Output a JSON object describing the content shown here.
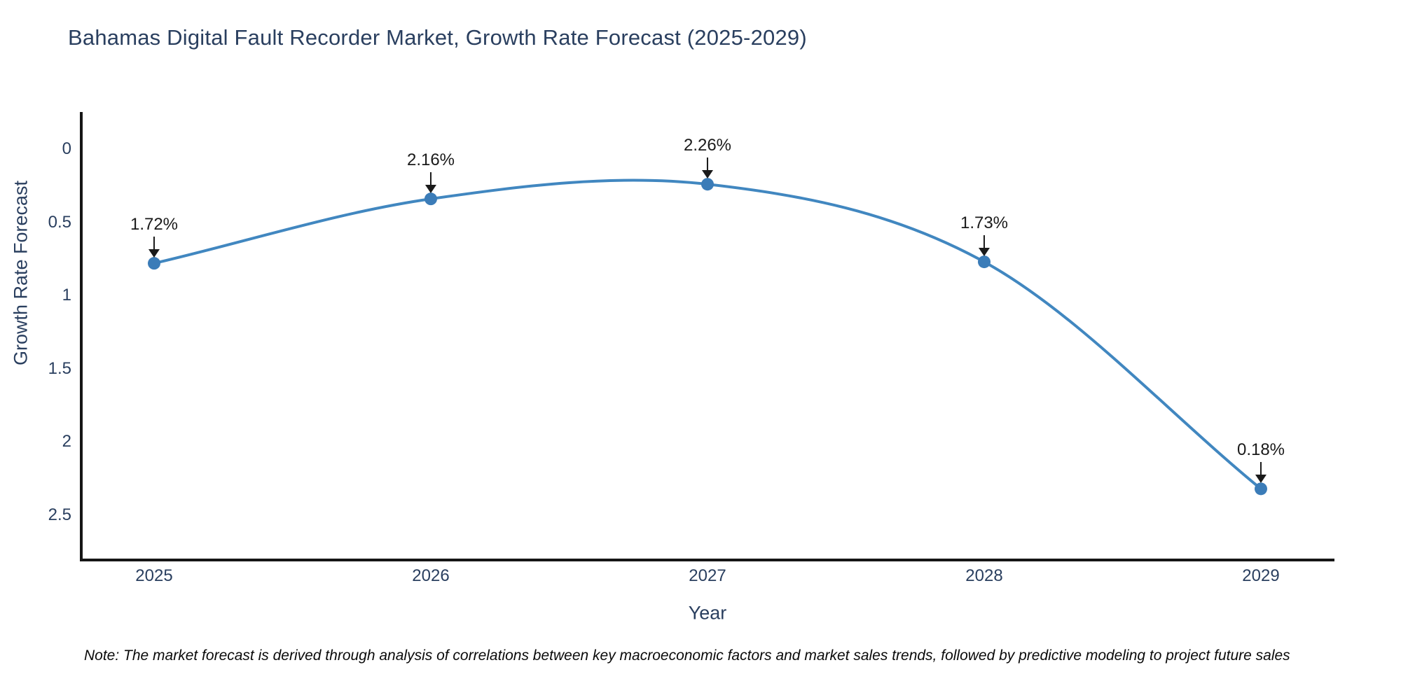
{
  "chart_data": {
    "type": "line",
    "title": "Bahamas Digital Fault Recorder Market, Growth Rate Forecast (2025-2029)",
    "xlabel": "Year",
    "ylabel": "Growth Rate Forecast",
    "x": [
      2025,
      2026,
      2027,
      2028,
      2029
    ],
    "x_labels": [
      "2025",
      "2026",
      "2027",
      "2028",
      "2029"
    ],
    "values": [
      1.72,
      2.16,
      2.26,
      1.73,
      0.18
    ],
    "point_labels": [
      "1.72%",
      "2.16%",
      "2.26%",
      "1.73%",
      "0.18%"
    ],
    "ytick_values": [
      0,
      0.5,
      1,
      1.5,
      2,
      2.5
    ],
    "ytick_labels": [
      "0",
      "0.5",
      "1",
      "1.5",
      "2",
      "2.5"
    ],
    "ylim": [
      -0.32,
      2.75
    ],
    "xlim": [
      2024.73,
      2029.27
    ],
    "grid": false,
    "legend": "none",
    "line_shape": "spline",
    "annotation_style": "down-arrow",
    "note": "Note: The market forecast is derived through analysis of correlations between key macroeconomic factors and market sales trends, followed by predictive modeling to project future sales",
    "colors": {
      "line": "#4187c0",
      "marker": "#3b7cb8",
      "axis": "#161616",
      "title": "#2a3f5f",
      "tick": "#2a3f5f",
      "annotation": "#1a1a1a",
      "note": "#0a0a0a",
      "background": "#ffffff"
    }
  }
}
